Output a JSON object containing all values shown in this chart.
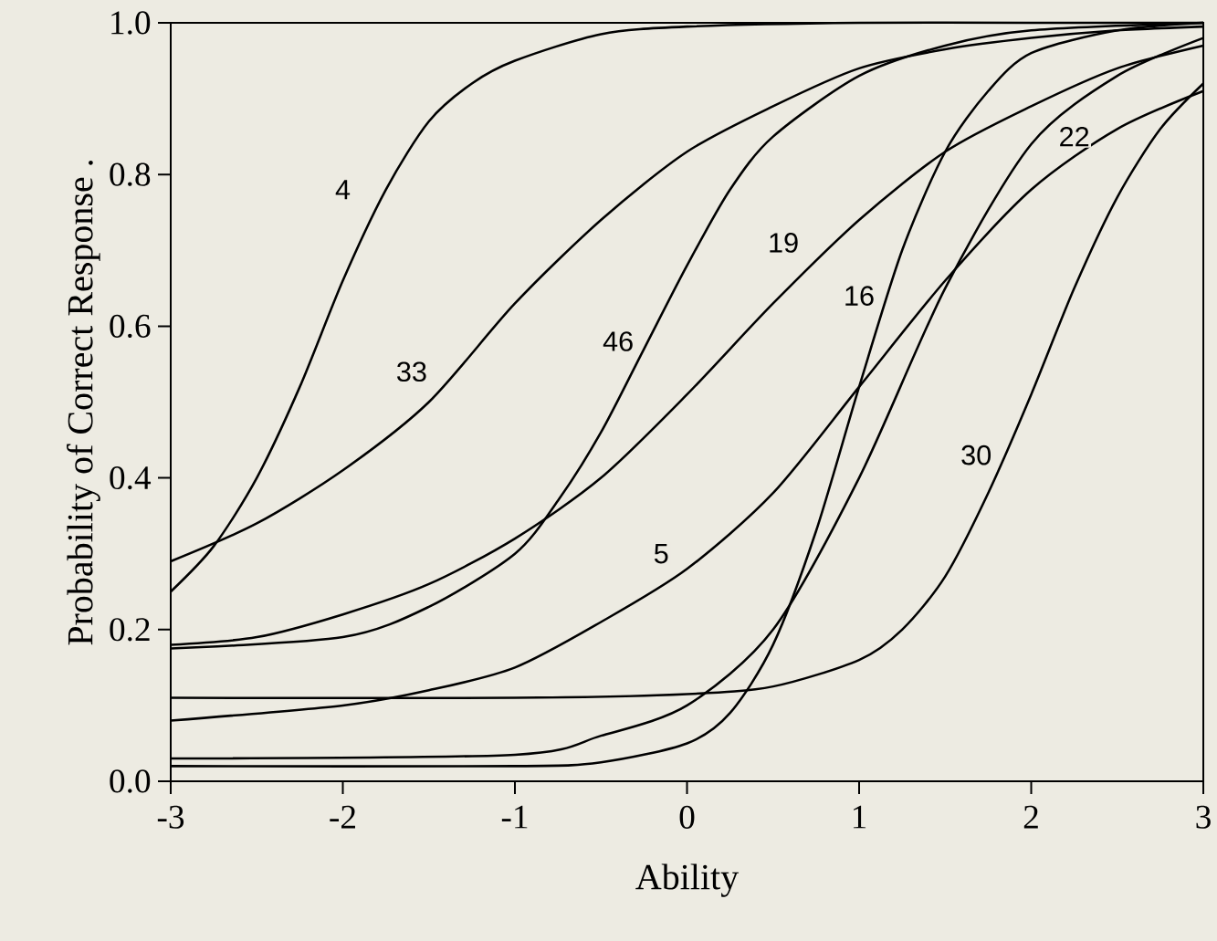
{
  "chart_data": {
    "type": "line",
    "xlabel": "Ability",
    "ylabel": "Probability of Correct Response  .",
    "xlim": [
      -3,
      3
    ],
    "ylim": [
      0,
      1
    ],
    "xticks": [
      -3,
      -2,
      -1,
      0,
      1,
      2,
      3
    ],
    "yticks": [
      {
        "value": 0,
        "label": "0.0"
      },
      {
        "value": 0.2,
        "label": "0.2"
      },
      {
        "value": 0.4,
        "label": "0.4"
      },
      {
        "value": 0.6,
        "label": "0.6"
      },
      {
        "value": 0.8,
        "label": "0.8"
      },
      {
        "value": 1,
        "label": "1.0"
      }
    ],
    "series": [
      {
        "color": "#000000",
        "x": [
          -3,
          -2.75,
          -2.5,
          -2.25,
          -2,
          -1.75,
          -1.5,
          -1.25,
          -1,
          -0.5,
          0,
          1,
          2,
          3
        ],
        "values": [
          0.25,
          0.31,
          0.4,
          0.52,
          0.66,
          0.78,
          0.87,
          0.92,
          0.95,
          0.985,
          0.995,
          1.0,
          1.0,
          1.0
        ]
      },
      {
        "color": "#000000",
        "x": [
          -3,
          -2.5,
          -2,
          -1.5,
          -1,
          -0.5,
          0,
          0.5,
          1,
          1.5,
          2,
          2.5,
          3
        ],
        "values": [
          0.29,
          0.34,
          0.41,
          0.5,
          0.63,
          0.74,
          0.83,
          0.89,
          0.94,
          0.965,
          0.98,
          0.99,
          0.995
        ]
      },
      {
        "color": "#000000",
        "x": [
          -3,
          -2,
          -1.5,
          -1,
          -0.75,
          -0.5,
          -0.25,
          0,
          0.25,
          0.5,
          1,
          1.5,
          2,
          3
        ],
        "values": [
          0.175,
          0.19,
          0.23,
          0.3,
          0.37,
          0.46,
          0.57,
          0.68,
          0.78,
          0.85,
          0.93,
          0.97,
          0.99,
          1.0
        ]
      },
      {
        "color": "#000000",
        "x": [
          -3,
          -2.5,
          -2,
          -1.5,
          -1,
          -0.5,
          0,
          0.5,
          1,
          1.5,
          2,
          2.5,
          3
        ],
        "values": [
          0.18,
          0.19,
          0.22,
          0.26,
          0.32,
          0.4,
          0.51,
          0.63,
          0.74,
          0.83,
          0.89,
          0.94,
          0.97
        ]
      },
      {
        "color": "#000000",
        "x": [
          -3,
          -2,
          -1.5,
          -1,
          -0.5,
          0,
          0.5,
          1,
          1.5,
          2,
          2.5,
          3
        ],
        "values": [
          0.08,
          0.1,
          0.12,
          0.15,
          0.21,
          0.28,
          0.38,
          0.52,
          0.66,
          0.78,
          0.86,
          0.91
        ]
      },
      {
        "color": "#000000",
        "x": [
          -3,
          -1,
          -0.5,
          0,
          0.25,
          0.5,
          0.75,
          1,
          1.25,
          1.5,
          1.75,
          2,
          2.5,
          3
        ],
        "values": [
          0.02,
          0.02,
          0.025,
          0.05,
          0.09,
          0.18,
          0.33,
          0.52,
          0.7,
          0.83,
          0.91,
          0.96,
          0.99,
          1.0
        ]
      },
      {
        "color": "#000000",
        "x": [
          -3,
          -1,
          -0.5,
          0,
          0.5,
          1,
          1.5,
          2,
          2.5,
          3
        ],
        "values": [
          0.03,
          0.035,
          0.06,
          0.1,
          0.2,
          0.4,
          0.65,
          0.84,
          0.93,
          0.98
        ]
      },
      {
        "color": "#000000",
        "x": [
          -3,
          -1,
          0,
          0.5,
          1,
          1.25,
          1.5,
          1.75,
          2,
          2.25,
          2.5,
          2.75,
          3
        ],
        "values": [
          0.11,
          0.11,
          0.115,
          0.125,
          0.16,
          0.2,
          0.27,
          0.38,
          0.51,
          0.65,
          0.77,
          0.86,
          0.92
        ]
      }
    ],
    "annotations": [
      {
        "text": "4",
        "x": -2.0,
        "y": 0.78
      },
      {
        "text": "33",
        "x": -1.6,
        "y": 0.54
      },
      {
        "text": "46",
        "x": -0.4,
        "y": 0.58
      },
      {
        "text": "19",
        "x": 0.56,
        "y": 0.71
      },
      {
        "text": "16",
        "x": 1.0,
        "y": 0.64
      },
      {
        "text": "5",
        "x": -0.15,
        "y": 0.3
      },
      {
        "text": "30",
        "x": 1.68,
        "y": 0.43
      },
      {
        "text": "22",
        "x": 2.25,
        "y": 0.85
      }
    ]
  }
}
